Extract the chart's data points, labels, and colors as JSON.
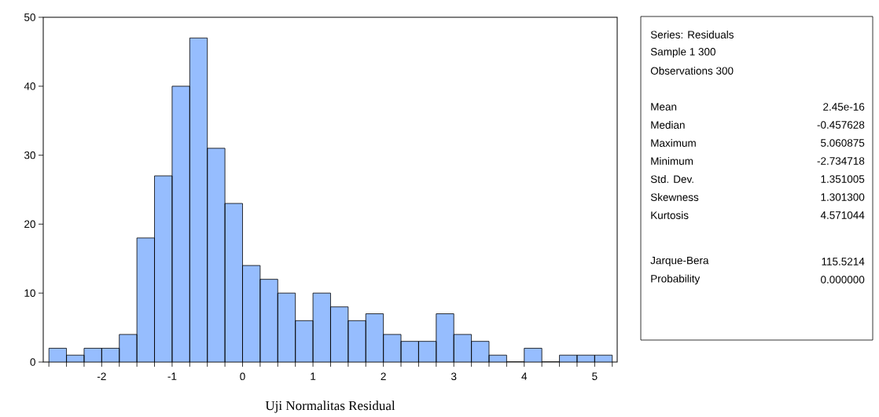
{
  "chart_data": {
    "type": "histogram",
    "bins": [
      -2.75,
      -2.5,
      -2.25,
      -2,
      -1.75,
      -1.5,
      -1.25,
      -1,
      -0.75,
      -0.5,
      -0.25,
      0,
      0.25,
      0.5,
      0.75,
      1,
      1.25,
      1.5,
      1.75,
      2,
      2.25,
      2.5,
      2.75,
      3,
      3.25,
      3.5,
      3.75,
      4,
      4.25,
      4.5,
      4.75,
      5,
      5.25
    ],
    "values": [
      2,
      1,
      2,
      2,
      4,
      18,
      27,
      40,
      47,
      31,
      23,
      14,
      12,
      10,
      6,
      10,
      8,
      6,
      7,
      4,
      3,
      3,
      7,
      4,
      3,
      1,
      0,
      2,
      0,
      1,
      1,
      1
    ],
    "color": "#96bdfe",
    "xlim": [
      -2.83,
      5.32
    ],
    "ylim": [
      0,
      50
    ],
    "xticks": [
      {
        "value": -2.75,
        "label": null
      },
      {
        "value": -2.5,
        "label": null
      },
      {
        "value": -2.25,
        "label": null
      },
      -2,
      {
        "value": -1.75,
        "label": null
      },
      {
        "value": -1.5,
        "label": null
      },
      {
        "value": -1.25,
        "label": null
      },
      -1,
      {
        "value": -0.75,
        "label": null
      },
      {
        "value": -0.5,
        "label": null
      },
      {
        "value": -0.25,
        "label": null
      },
      0,
      {
        "value": 0.25,
        "label": null
      },
      {
        "value": 0.5,
        "label": null
      },
      {
        "value": 0.75,
        "label": null
      },
      1,
      {
        "value": 1.25,
        "label": null
      },
      {
        "value": 1.5,
        "label": null
      },
      {
        "value": 1.75,
        "label": null
      },
      2,
      {
        "value": 2.25,
        "label": null
      },
      {
        "value": 2.5,
        "label": null
      },
      {
        "value": 2.75,
        "label": null
      },
      3,
      {
        "value": 3.25,
        "label": null
      },
      {
        "value": 3.5,
        "label": null
      },
      {
        "value": 3.75,
        "label": null
      },
      4,
      {
        "value": 4.25,
        "label": null
      },
      {
        "value": 4.5,
        "label": null
      },
      {
        "value": 4.75,
        "label": null
      },
      5,
      {
        "value": 5.25,
        "label": null
      }
    ],
    "yticks": [
      0,
      10,
      20,
      30,
      40,
      50
    ],
    "annotations": [
      "Series: Residuals",
      "Sample 1 300",
      "Observations 300",
      "Mean",
      "2.45e-16",
      "Median",
      "-0.457628",
      "Maximum",
      "5.060875",
      "Minimum",
      "-2.734718",
      "Std. Dev.",
      "1.351005",
      "Skewness",
      "1.301300",
      "Kurtosis",
      "4.571044",
      "Jarque-Bera",
      "115.5214",
      "Probability",
      "0.000000",
      "Uji Normalitas Residual"
    ]
  }
}
